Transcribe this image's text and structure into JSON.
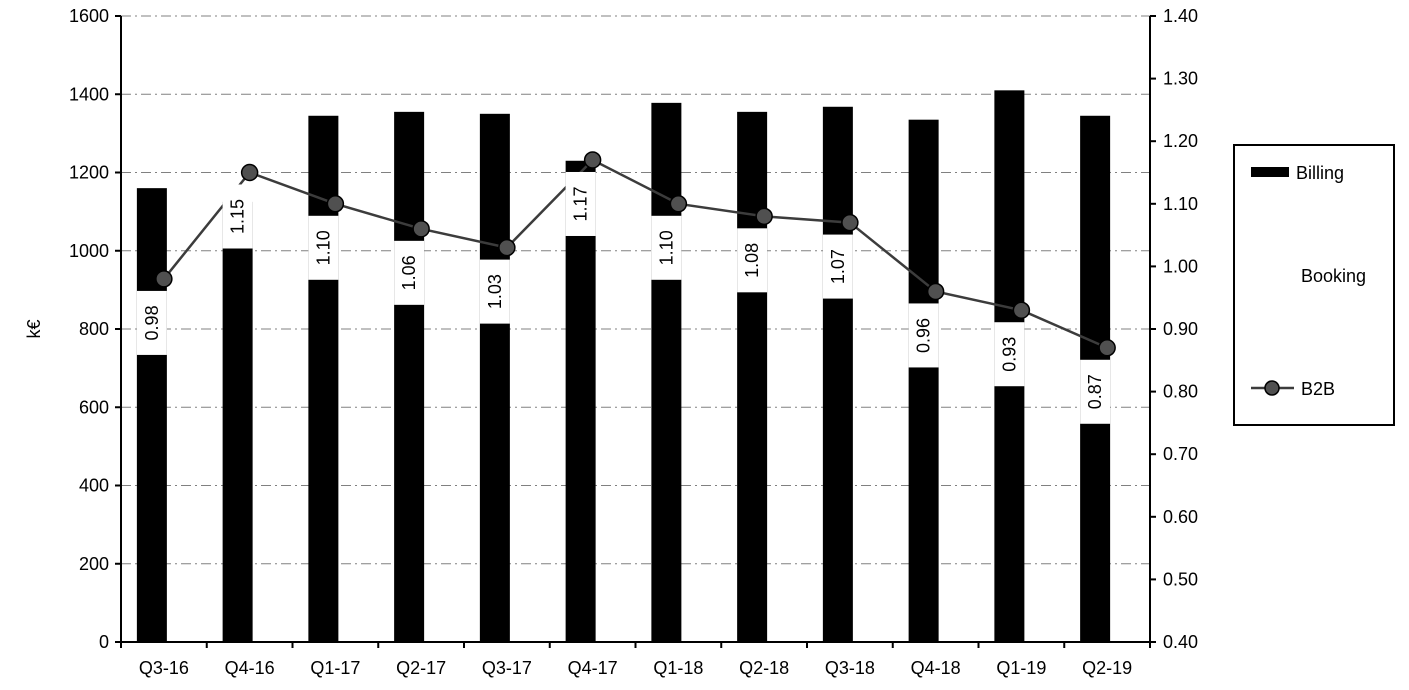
{
  "chart_data": {
    "type": "bar",
    "categories": [
      "Q3-16",
      "Q4-16",
      "Q1-17",
      "Q2-17",
      "Q3-17",
      "Q4-17",
      "Q1-18",
      "Q2-18",
      "Q3-18",
      "Q4-18",
      "Q1-19",
      "Q2-19"
    ],
    "series": [
      {
        "name": "Billing",
        "type": "bar",
        "axis": "left",
        "values": [
          1160,
          1125,
          1345,
          1355,
          1350,
          1230,
          1378,
          1355,
          1368,
          1335,
          1410,
          1345
        ]
      },
      {
        "name": "Booking",
        "type": "bar",
        "axis": "left",
        "values": [
          null,
          null,
          null,
          null,
          null,
          null,
          null,
          null,
          null,
          null,
          null,
          null
        ]
      },
      {
        "name": "B2B",
        "type": "line",
        "axis": "right",
        "values": [
          0.98,
          1.15,
          1.1,
          1.06,
          1.03,
          1.17,
          1.1,
          1.08,
          1.07,
          0.96,
          0.93,
          0.87
        ]
      }
    ],
    "data_labels": [
      "0.98",
      "1.15",
      "1.10",
      "1.06",
      "1.03",
      "1.17",
      "1.10",
      "1.08",
      "1.07",
      "0.96",
      "0.93",
      "0.87"
    ],
    "ylabel": "k€",
    "ylim": [
      0,
      1600
    ],
    "y_ticks": [
      "0",
      "200",
      "400",
      "600",
      "800",
      "1000",
      "1200",
      "1400",
      "1600"
    ],
    "y2lim": [
      0.4,
      1.4
    ],
    "y2_ticks": [
      "0.40",
      "0.50",
      "0.60",
      "0.70",
      "0.80",
      "0.90",
      "1.00",
      "1.10",
      "1.20",
      "1.30",
      "1.40"
    ],
    "grid": true,
    "legend_position": "right",
    "legend": [
      "Billing",
      "Booking",
      "B2B"
    ],
    "colors": {
      "bars": "#000000",
      "line": "#3c3c3c",
      "marker": "#505050",
      "grid": "#808080"
    }
  }
}
